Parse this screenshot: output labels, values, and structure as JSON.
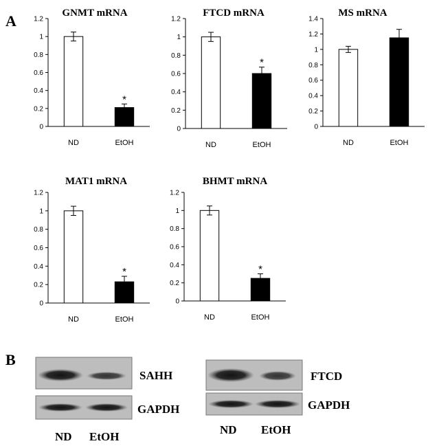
{
  "panels": {
    "a": "A",
    "b": "B"
  },
  "chart_data": [
    {
      "type": "bar",
      "title": "GNMT mRNA",
      "categories": [
        "ND",
        "EtOH"
      ],
      "values": [
        1.0,
        0.21
      ],
      "errors": [
        0.05,
        0.04
      ],
      "significance": [
        "",
        "*"
      ],
      "colors": [
        "#ffffff",
        "#000000"
      ],
      "ylim": [
        0,
        1.2
      ],
      "yticks": [
        "0",
        "0.2",
        "0.4",
        "0.6",
        "0.8",
        "1",
        "1.2"
      ]
    },
    {
      "type": "bar",
      "title": "FTCD mRNA",
      "categories": [
        "ND",
        "EtOH"
      ],
      "values": [
        1.0,
        0.6
      ],
      "errors": [
        0.05,
        0.07
      ],
      "significance": [
        "",
        "*"
      ],
      "colors": [
        "#ffffff",
        "#000000"
      ],
      "ylim": [
        0,
        1.2
      ],
      "yticks": [
        "0",
        "0.2",
        "0.4",
        "0.6",
        "0.8",
        "1",
        "1.2"
      ]
    },
    {
      "type": "bar",
      "title": "MS mRNA",
      "categories": [
        "ND",
        "EtOH"
      ],
      "values": [
        1.0,
        1.15
      ],
      "errors": [
        0.04,
        0.11
      ],
      "significance": [
        "",
        ""
      ],
      "colors": [
        "#ffffff",
        "#000000"
      ],
      "ylim": [
        0,
        1.4
      ],
      "yticks": [
        "0",
        "0.2",
        "0.4",
        "0.6",
        "0.8",
        "1",
        "1.2",
        "1.4"
      ]
    },
    {
      "type": "bar",
      "title": "MAT1 mRNA",
      "categories": [
        "ND",
        "EtOH"
      ],
      "values": [
        1.0,
        0.23
      ],
      "errors": [
        0.05,
        0.06
      ],
      "significance": [
        "",
        "*"
      ],
      "colors": [
        "#ffffff",
        "#000000"
      ],
      "ylim": [
        0,
        1.2
      ],
      "yticks": [
        "0",
        "0.2",
        "0.4",
        "0.6",
        "0.8",
        "1",
        "1.2"
      ]
    },
    {
      "type": "bar",
      "title": "BHMT mRNA",
      "categories": [
        "ND",
        "EtOH"
      ],
      "values": [
        1.0,
        0.25
      ],
      "errors": [
        0.05,
        0.05
      ],
      "significance": [
        "",
        "*"
      ],
      "colors": [
        "#ffffff",
        "#000000"
      ],
      "ylim": [
        0,
        1.2
      ],
      "yticks": [
        "0",
        "0.2",
        "0.4",
        "0.6",
        "0.8",
        "1",
        "1.2"
      ]
    }
  ],
  "blots": {
    "left": {
      "top_label": "SAHH",
      "bottom_label": "GAPDH",
      "lanes": [
        "ND",
        "EtOH"
      ]
    },
    "right": {
      "top_label": "FTCD",
      "bottom_label": "GAPDH",
      "lanes": [
        "ND",
        "EtOH"
      ]
    }
  }
}
